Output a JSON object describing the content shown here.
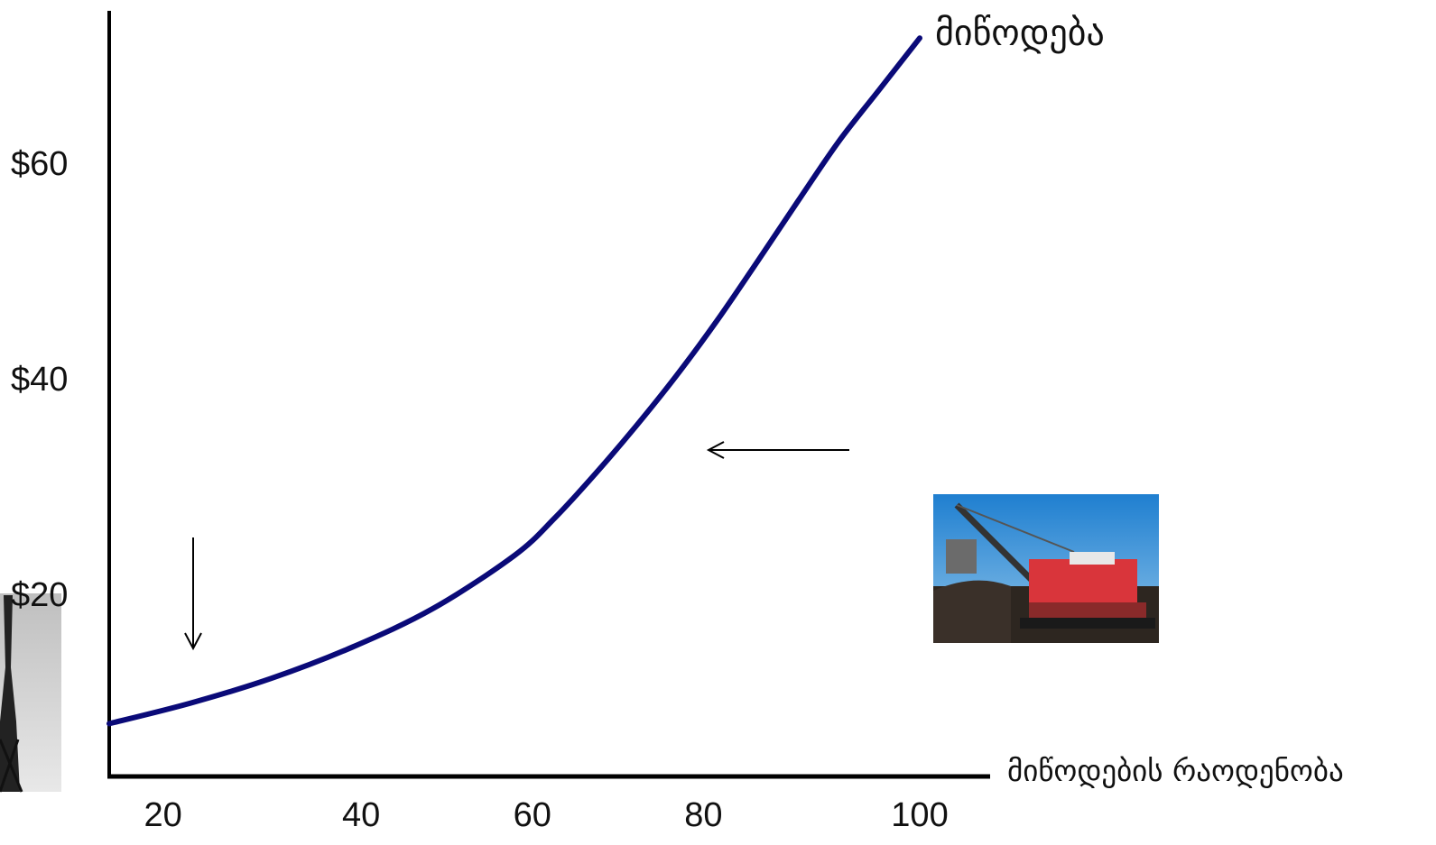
{
  "chart_data": {
    "type": "line",
    "title": "",
    "xlabel": "მიწოდების რაოდენობა",
    "ylabel": "",
    "xlim": [
      0,
      100
    ],
    "ylim": [
      0,
      64
    ],
    "x_ticks": [
      20,
      40,
      60,
      80,
      100
    ],
    "y_ticks": [
      20,
      40,
      60
    ],
    "y_tick_labels": [
      "$20",
      "$40",
      "$60"
    ],
    "grid": false,
    "series": [
      {
        "name": "მიწოდება",
        "color": "#0a0a78",
        "x": [
          0,
          10,
          20,
          30,
          40,
          50,
          55,
          60,
          65,
          70,
          75,
          80,
          85,
          90,
          95,
          100
        ],
        "y": [
          4.9,
          6.8,
          9.1,
          12,
          15.6,
          20.5,
          24,
          28.1,
          32.5,
          37.2,
          42.3,
          47.8,
          53.4,
          58.9,
          63.7,
          68.5
        ]
      }
    ],
    "annotations": [
      {
        "type": "arrow",
        "direction": "down",
        "points_to": "start of curve"
      },
      {
        "type": "arrow",
        "direction": "left",
        "points_to": "curve at ~x 66"
      }
    ]
  },
  "images": {
    "left_photo": "oil-well-photo",
    "right_photo": "mining-excavator-photo"
  }
}
